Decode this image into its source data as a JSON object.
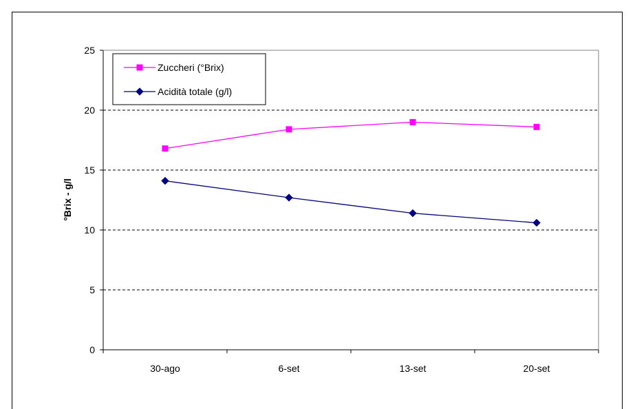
{
  "chart_data": {
    "type": "line",
    "categories": [
      "30-ago",
      "6-set",
      "13-set",
      "20-set"
    ],
    "series": [
      {
        "name": "Zuccheri (°Brix)",
        "values": [
          16.8,
          18.4,
          19.0,
          18.6
        ],
        "color": "#ff00ff",
        "marker": "square"
      },
      {
        "name": "Acidità totale (g/l)",
        "values": [
          14.1,
          12.7,
          11.4,
          10.6
        ],
        "color": "#000080",
        "marker": "diamond"
      }
    ],
    "title": "",
    "xlabel": "",
    "ylabel": "°Brix - g/l",
    "ylim": [
      0,
      25
    ],
    "yticks": [
      0,
      5,
      10,
      15,
      20,
      25
    ],
    "grid": "horizontal dashed",
    "legend_position": "top-left"
  }
}
